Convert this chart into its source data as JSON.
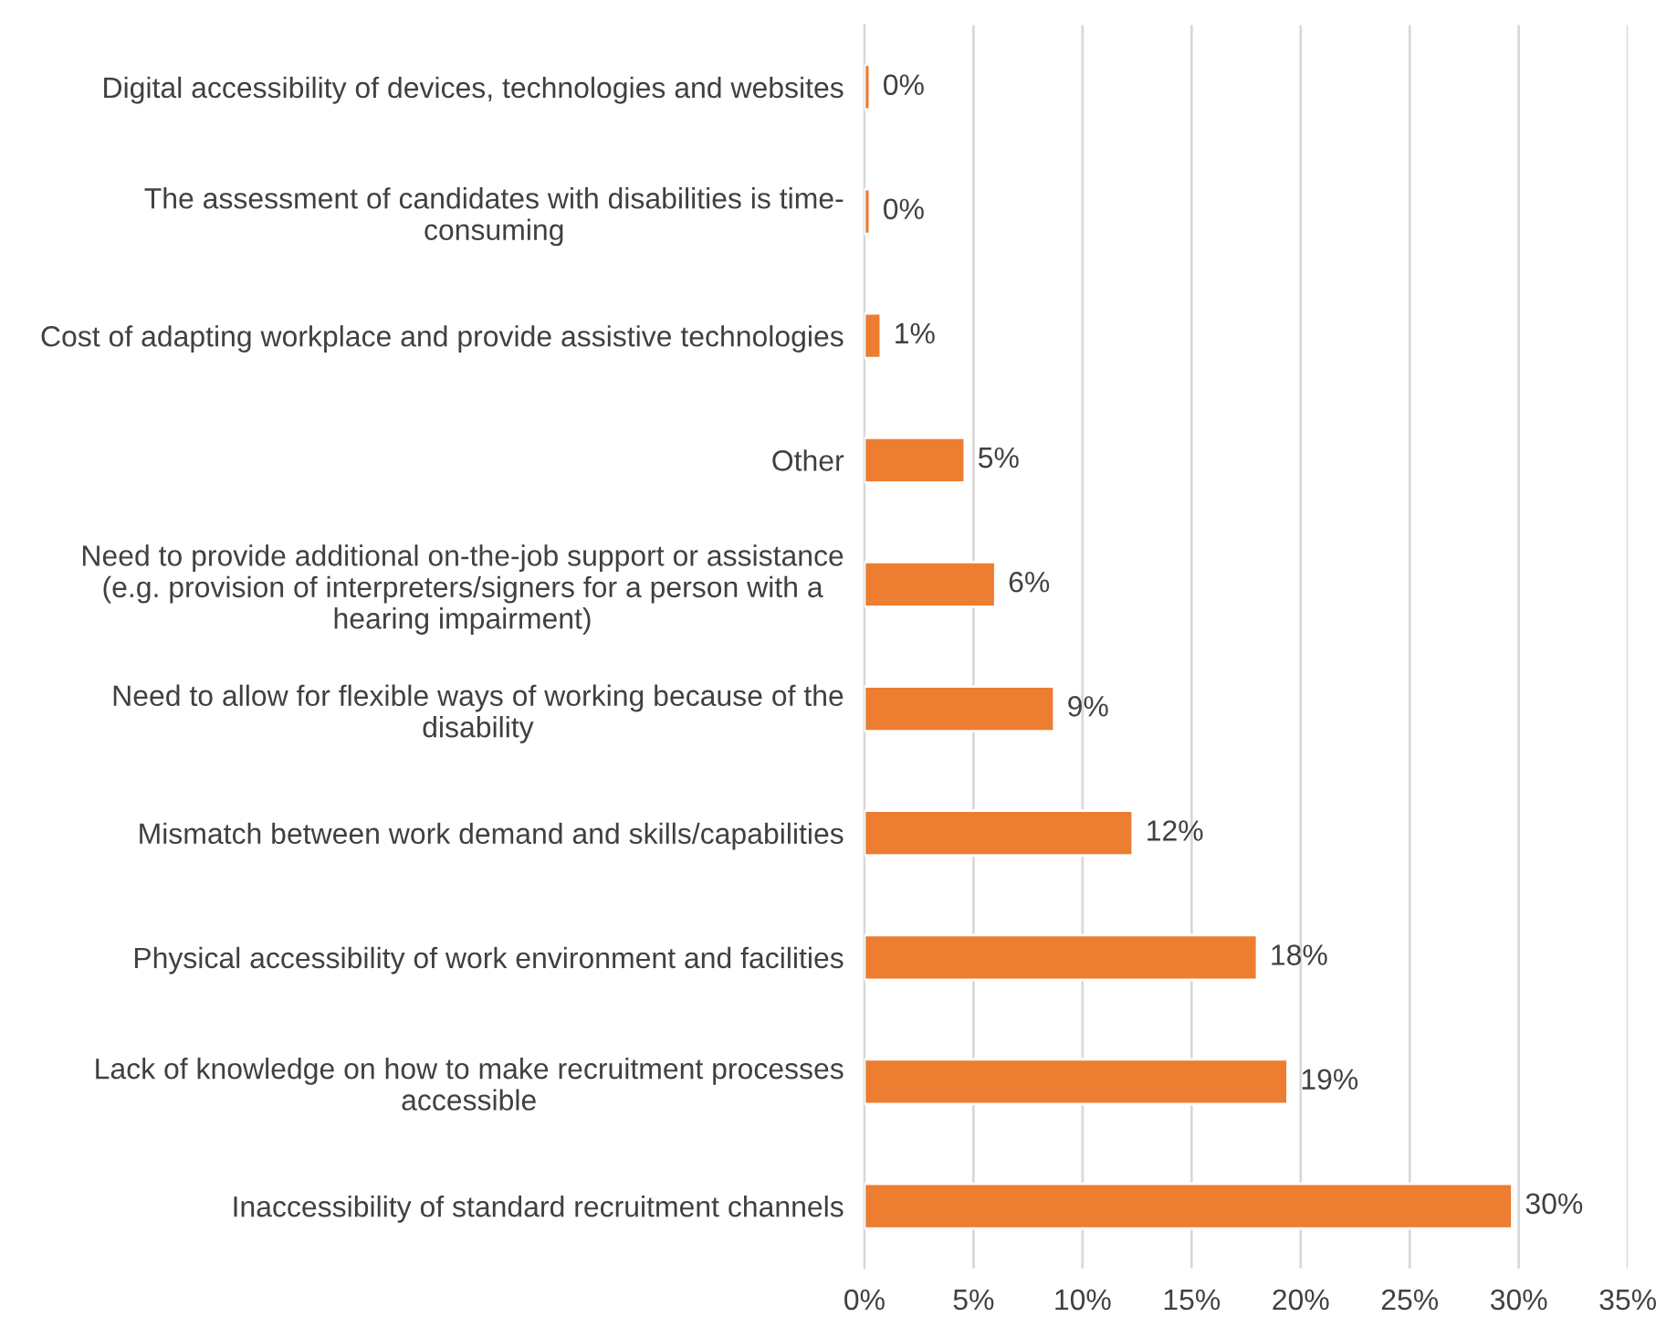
{
  "chart_data": {
    "type": "bar",
    "orientation": "horizontal",
    "categories": [
      "Digital accessibility of devices, technologies and websites",
      "The assessment of candidates with disabilities is time-\nconsuming",
      "Cost of adapting workplace and provide assistive technologies",
      "Other",
      "Need to provide additional on-the-job support or assistance\n(e.g. provision of interpreters/signers for a person with a\nhearing impairment)",
      "Need to allow for flexible ways of working because of the\ndisability",
      "Mismatch between work demand and skills/capabilities",
      "Physical accessibility of work environment and facilities",
      "Lack of knowledge on how to make recruitment processes\naccessible",
      "Inaccessibility of standard recruitment channels"
    ],
    "values": [
      0.25,
      0.25,
      0.75,
      4.6,
      6.0,
      8.7,
      12.3,
      18.0,
      19.4,
      29.7
    ],
    "value_labels": [
      "0%",
      "0%",
      "1%",
      "5%",
      "6%",
      "9%",
      "12%",
      "18%",
      "19%",
      "30%"
    ],
    "color": "#ed7d31",
    "xlim": [
      0,
      35
    ],
    "xticks": [
      {
        "value": 0,
        "label": "0%"
      },
      {
        "value": 5,
        "label": "5%"
      },
      {
        "value": 10,
        "label": "10%"
      },
      {
        "value": 15,
        "label": "15%"
      },
      {
        "value": 20,
        "label": "20%"
      },
      {
        "value": 25,
        "label": "25%"
      },
      {
        "value": 30,
        "label": "30%"
      },
      {
        "value": 35,
        "label": "35%"
      }
    ],
    "grid": "x",
    "legend": false
  }
}
